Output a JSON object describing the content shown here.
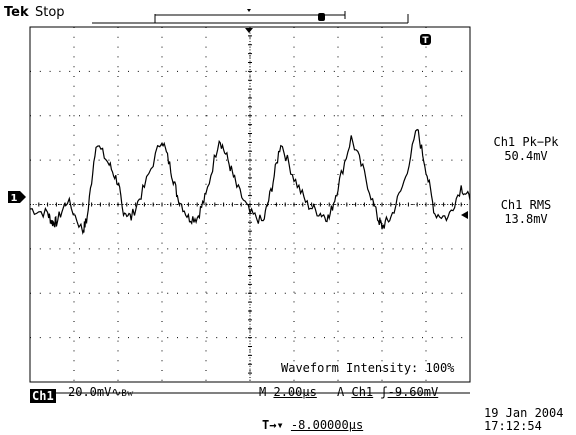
{
  "header": {
    "brand": "Tek",
    "run_state": "Stop"
  },
  "channel": {
    "marker": "1",
    "label": "Ch1",
    "scale": "20.0mV",
    "coupling_symbol": "∿",
    "bw_symbol": "Bᴡ"
  },
  "timebase": {
    "prefix": "M",
    "value": "2.00µs"
  },
  "trigger": {
    "prefix": "A",
    "source": "Ch1",
    "slope_symbol": "ʃ",
    "level": "-9.60mV",
    "marker": "T"
  },
  "horizontal_position": {
    "arrow": "T→▾",
    "value": "-8.00000µs"
  },
  "measurements": [
    {
      "label": "Ch1 Pk−Pk",
      "value": "50.4mV"
    },
    {
      "label": "Ch1 RMS",
      "value": "13.8mV"
    }
  ],
  "waveform_intensity": "Waveform Intensity: 100%",
  "date": "19 Jan  2004",
  "time": "17:12:54",
  "colors": {
    "trace": "#000000",
    "grid": "#000000",
    "watermark": "#e8372e"
  },
  "chart_data": {
    "type": "line",
    "x_divisions": 10,
    "y_divisions": 8,
    "x_range_us": [
      -10,
      10
    ],
    "y_range_mV": [
      -80,
      80
    ],
    "periods_shown": 6,
    "series": [
      {
        "x_us": [
          -10,
          -9.2,
          -9.0,
          -8.8,
          -8.3,
          -7.6,
          -7.4,
          -7.0,
          -6.4,
          -6.0,
          -5.8,
          -5.4,
          -4.8,
          -4.0,
          -3.6,
          -3.3,
          -2.8,
          -2.4,
          -2.0,
          -1.4,
          -1.0,
          -0.6,
          0.0,
          0.6,
          1.0,
          1.4,
          2.0,
          2.6,
          3.2,
          3.6,
          4.0,
          4.6,
          5.2,
          5.8,
          6.0,
          6.4,
          7.0,
          7.6,
          8.0,
          8.4,
          9.0,
          9.6,
          10.0
        ],
        "y_mV": [
          -2,
          -4,
          -8,
          -8,
          2,
          -12,
          -6,
          28,
          18,
          10,
          -2,
          -6,
          8,
          30,
          16,
          4,
          -6,
          -6,
          4,
          30,
          20,
          8,
          -4,
          -8,
          8,
          28,
          12,
          0,
          -4,
          -6,
          8,
          30,
          14,
          -6,
          -10,
          -6,
          10,
          34,
          16,
          -4,
          -6,
          8,
          2
        ]
      }
    ]
  }
}
